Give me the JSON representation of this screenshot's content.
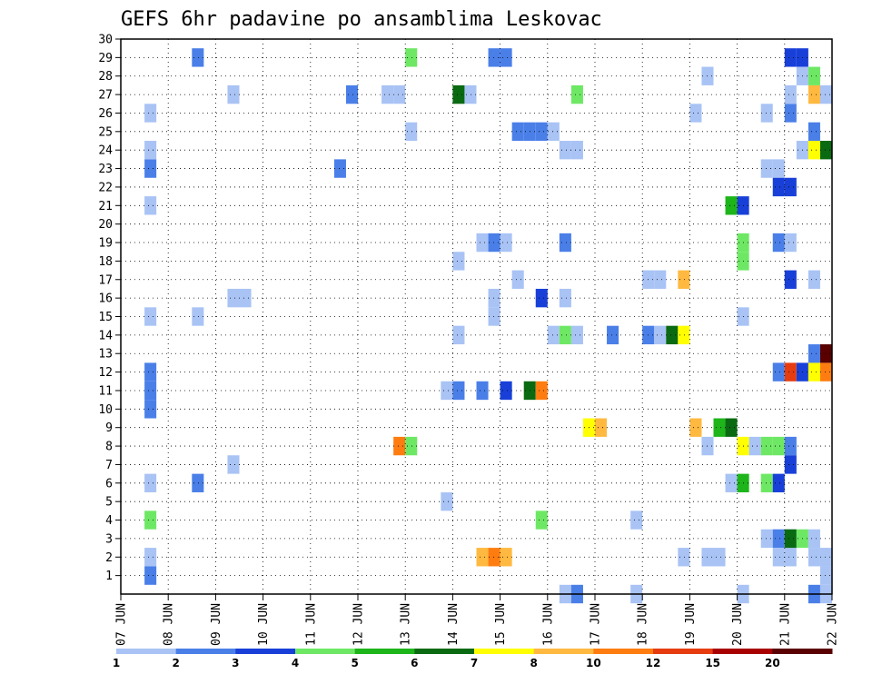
{
  "chart_data": {
    "type": "heatmap",
    "title": "GEFS 6hr padavine po ansamblima Leskovac",
    "xlabel": "",
    "ylabel": "",
    "x_ticks": [
      "07 JUN",
      "08 JUN",
      "09 JUN",
      "10 JUN",
      "11 JUN",
      "12 JUN",
      "13 JUN",
      "14 JUN",
      "15 JUN",
      "16 JUN",
      "17 JUN",
      "18 JUN",
      "19 JUN",
      "20 JUN",
      "21 JUN",
      "22 JUN"
    ],
    "y_ticks": [
      "1",
      "2",
      "3",
      "4",
      "5",
      "6",
      "7",
      "8",
      "9",
      "10",
      "11",
      "12",
      "13",
      "14",
      "15",
      "16",
      "17",
      "18",
      "19",
      "20",
      "21",
      "22",
      "23",
      "24",
      "25",
      "26",
      "27",
      "28",
      "29",
      "30"
    ],
    "x_range_days": [
      0,
      15
    ],
    "y_range": [
      0,
      30
    ],
    "grid": true,
    "legend": "bottom colorbar",
    "colorbar": {
      "labels": [
        "1",
        "2",
        "3",
        "4",
        "5",
        "6",
        "7",
        "8",
        "10",
        "12",
        "15",
        "20"
      ],
      "colors": [
        "#a9c3f5",
        "#4a7fe8",
        "#1840d8",
        "#6ee864",
        "#1db51a",
        "#0a6a12",
        "#ffff00",
        "#ffb940",
        "#ff7d10",
        "#e63c10",
        "#a80000",
        "#5a0000"
      ]
    },
    "cells": [
      {
        "day": 0.5,
        "member": 1,
        "cat": 2
      },
      {
        "day": 0.5,
        "member": 2,
        "cat": 1
      },
      {
        "day": 0.5,
        "member": 4,
        "cat": 4
      },
      {
        "day": 0.5,
        "member": 6,
        "cat": 1
      },
      {
        "day": 0.5,
        "member": 10,
        "cat": 2
      },
      {
        "day": 0.5,
        "member": 11,
        "cat": 2
      },
      {
        "day": 0.5,
        "member": 12,
        "cat": 2
      },
      {
        "day": 0.5,
        "member": 15,
        "cat": 1
      },
      {
        "day": 0.5,
        "member": 21,
        "cat": 1
      },
      {
        "day": 0.5,
        "member": 23,
        "cat": 2
      },
      {
        "day": 0.5,
        "member": 24,
        "cat": 1
      },
      {
        "day": 0.5,
        "member": 26,
        "cat": 1
      },
      {
        "day": 1.5,
        "member": 6,
        "cat": 2
      },
      {
        "day": 1.5,
        "member": 15,
        "cat": 1
      },
      {
        "day": 1.5,
        "member": 29,
        "cat": 2
      },
      {
        "day": 2.25,
        "member": 7,
        "cat": 1
      },
      {
        "day": 2.25,
        "member": 16,
        "cat": 1
      },
      {
        "day": 2.5,
        "member": 16,
        "cat": 1
      },
      {
        "day": 2.25,
        "member": 27,
        "cat": 1
      },
      {
        "day": 4.5,
        "member": 23,
        "cat": 2
      },
      {
        "day": 4.75,
        "member": 27,
        "cat": 2
      },
      {
        "day": 5.5,
        "member": 27,
        "cat": 1
      },
      {
        "day": 5.75,
        "member": 27,
        "cat": 1
      },
      {
        "day": 5.75,
        "member": 8,
        "cat": 9
      },
      {
        "day": 6.0,
        "member": 8,
        "cat": 4
      },
      {
        "day": 6.0,
        "member": 25,
        "cat": 1
      },
      {
        "day": 6.0,
        "member": 29,
        "cat": 4
      },
      {
        "day": 6.75,
        "member": 5,
        "cat": 1
      },
      {
        "day": 6.75,
        "member": 11,
        "cat": 1
      },
      {
        "day": 7.0,
        "member": 11,
        "cat": 2
      },
      {
        "day": 7.0,
        "member": 14,
        "cat": 1
      },
      {
        "day": 7.0,
        "member": 18,
        "cat": 1
      },
      {
        "day": 7.0,
        "member": 27,
        "cat": 6
      },
      {
        "day": 7.25,
        "member": 27,
        "cat": 1
      },
      {
        "day": 7.5,
        "member": 2,
        "cat": 8
      },
      {
        "day": 7.75,
        "member": 2,
        "cat": 9
      },
      {
        "day": 8.0,
        "member": 2,
        "cat": 8
      },
      {
        "day": 7.5,
        "member": 11,
        "cat": 2
      },
      {
        "day": 7.5,
        "member": 19,
        "cat": 1
      },
      {
        "day": 7.75,
        "member": 19,
        "cat": 2
      },
      {
        "day": 8.0,
        "member": 19,
        "cat": 1
      },
      {
        "day": 7.75,
        "member": 15,
        "cat": 1
      },
      {
        "day": 7.75,
        "member": 16,
        "cat": 1
      },
      {
        "day": 7.75,
        "member": 29,
        "cat": 2
      },
      {
        "day": 8.0,
        "member": 29,
        "cat": 2
      },
      {
        "day": 8.0,
        "member": 11,
        "cat": 3
      },
      {
        "day": 8.25,
        "member": 17,
        "cat": 1
      },
      {
        "day": 8.25,
        "member": 25,
        "cat": 2
      },
      {
        "day": 8.5,
        "member": 25,
        "cat": 2
      },
      {
        "day": 8.75,
        "member": 25,
        "cat": 2
      },
      {
        "day": 9.0,
        "member": 25,
        "cat": 1
      },
      {
        "day": 8.5,
        "member": 11,
        "cat": 6
      },
      {
        "day": 8.75,
        "member": 11,
        "cat": 9
      },
      {
        "day": 8.75,
        "member": 4,
        "cat": 4
      },
      {
        "day": 8.75,
        "member": 16,
        "cat": 3
      },
      {
        "day": 9.0,
        "member": 14,
        "cat": 1
      },
      {
        "day": 9.25,
        "member": 0,
        "cat": 1
      },
      {
        "day": 9.25,
        "member": 14,
        "cat": 4
      },
      {
        "day": 9.25,
        "member": 16,
        "cat": 1
      },
      {
        "day": 9.25,
        "member": 19,
        "cat": 2
      },
      {
        "day": 9.25,
        "member": 24,
        "cat": 1
      },
      {
        "day": 9.5,
        "member": 24,
        "cat": 1
      },
      {
        "day": 9.5,
        "member": 0,
        "cat": 2
      },
      {
        "day": 9.5,
        "member": 14,
        "cat": 1
      },
      {
        "day": 9.5,
        "member": 27,
        "cat": 4
      },
      {
        "day": 9.75,
        "member": 9,
        "cat": 7
      },
      {
        "day": 10.0,
        "member": 9,
        "cat": 8
      },
      {
        "day": 10.25,
        "member": 14,
        "cat": 2
      },
      {
        "day": 10.75,
        "member": 4,
        "cat": 1
      },
      {
        "day": 10.75,
        "member": 0,
        "cat": 1
      },
      {
        "day": 11.0,
        "member": 14,
        "cat": 2
      },
      {
        "day": 11.0,
        "member": 17,
        "cat": 1
      },
      {
        "day": 11.25,
        "member": 17,
        "cat": 1
      },
      {
        "day": 11.25,
        "member": 14,
        "cat": 1
      },
      {
        "day": 11.5,
        "member": 14,
        "cat": 6
      },
      {
        "day": 11.75,
        "member": 14,
        "cat": 7
      },
      {
        "day": 11.75,
        "member": 17,
        "cat": 8
      },
      {
        "day": 11.75,
        "member": 2,
        "cat": 1
      },
      {
        "day": 12.0,
        "member": 9,
        "cat": 8
      },
      {
        "day": 12.25,
        "member": 8,
        "cat": 1
      },
      {
        "day": 12.25,
        "member": 28,
        "cat": 1
      },
      {
        "day": 12.0,
        "member": 26,
        "cat": 1
      },
      {
        "day": 12.25,
        "member": 2,
        "cat": 1
      },
      {
        "day": 12.5,
        "member": 2,
        "cat": 1
      },
      {
        "day": 12.5,
        "member": 9,
        "cat": 5
      },
      {
        "day": 12.75,
        "member": 9,
        "cat": 6
      },
      {
        "day": 12.75,
        "member": 6,
        "cat": 1
      },
      {
        "day": 12.75,
        "member": 21,
        "cat": 5
      },
      {
        "day": 13.0,
        "member": 6,
        "cat": 5
      },
      {
        "day": 13.0,
        "member": 8,
        "cat": 7
      },
      {
        "day": 13.0,
        "member": 15,
        "cat": 1
      },
      {
        "day": 13.0,
        "member": 18,
        "cat": 4
      },
      {
        "day": 13.0,
        "member": 19,
        "cat": 4
      },
      {
        "day": 13.0,
        "member": 21,
        "cat": 3
      },
      {
        "day": 13.25,
        "member": 8,
        "cat": 1
      },
      {
        "day": 13.0,
        "member": 0,
        "cat": 1
      },
      {
        "day": 13.5,
        "member": 8,
        "cat": 4
      },
      {
        "day": 13.5,
        "member": 6,
        "cat": 4
      },
      {
        "day": 13.5,
        "member": 3,
        "cat": 1
      },
      {
        "day": 13.5,
        "member": 23,
        "cat": 1
      },
      {
        "day": 13.5,
        "member": 26,
        "cat": 1
      },
      {
        "day": 13.75,
        "member": 23,
        "cat": 1
      },
      {
        "day": 13.75,
        "member": 8,
        "cat": 4
      },
      {
        "day": 13.75,
        "member": 6,
        "cat": 3
      },
      {
        "day": 13.75,
        "member": 3,
        "cat": 2
      },
      {
        "day": 13.75,
        "member": 2,
        "cat": 1
      },
      {
        "day": 13.75,
        "member": 12,
        "cat": 2
      },
      {
        "day": 13.75,
        "member": 19,
        "cat": 2
      },
      {
        "day": 13.75,
        "member": 22,
        "cat": 3
      },
      {
        "day": 14.0,
        "member": 22,
        "cat": 3
      },
      {
        "day": 14.0,
        "member": 12,
        "cat": 10
      },
      {
        "day": 14.0,
        "member": 8,
        "cat": 2
      },
      {
        "day": 14.0,
        "member": 7,
        "cat": 3
      },
      {
        "day": 14.0,
        "member": 3,
        "cat": 1
      },
      {
        "day": 14.0,
        "member": 2,
        "cat": 1
      },
      {
        "day": 14.0,
        "member": 19,
        "cat": 1
      },
      {
        "day": 14.0,
        "member": 29,
        "cat": 3
      },
      {
        "day": 14.25,
        "member": 29,
        "cat": 3
      },
      {
        "day": 14.0,
        "member": 26,
        "cat": 2
      },
      {
        "day": 14.0,
        "member": 27,
        "cat": 1
      },
      {
        "day": 14.0,
        "member": 17,
        "cat": 3
      },
      {
        "day": 14.0,
        "member": 3,
        "cat": 6
      },
      {
        "day": 14.25,
        "member": 12,
        "cat": 3
      },
      {
        "day": 14.25,
        "member": 3,
        "cat": 4
      },
      {
        "day": 14.25,
        "member": 24,
        "cat": 1
      },
      {
        "day": 14.25,
        "member": 28,
        "cat": 1
      },
      {
        "day": 14.5,
        "member": 12,
        "cat": 7
      },
      {
        "day": 14.5,
        "member": 13,
        "cat": 2
      },
      {
        "day": 14.5,
        "member": 24,
        "cat": 7
      },
      {
        "day": 14.5,
        "member": 25,
        "cat": 2
      },
      {
        "day": 14.5,
        "member": 27,
        "cat": 8
      },
      {
        "day": 14.5,
        "member": 28,
        "cat": 4
      },
      {
        "day": 14.5,
        "member": 3,
        "cat": 1
      },
      {
        "day": 14.5,
        "member": 2,
        "cat": 1
      },
      {
        "day": 14.5,
        "member": 17,
        "cat": 1
      },
      {
        "day": 14.75,
        "member": 12,
        "cat": 9
      },
      {
        "day": 14.75,
        "member": 13,
        "cat": 12
      },
      {
        "day": 14.75,
        "member": 24,
        "cat": 6
      },
      {
        "day": 14.75,
        "member": 27,
        "cat": 1
      },
      {
        "day": 14.75,
        "member": 2,
        "cat": 1
      },
      {
        "day": 14.75,
        "member": 1,
        "cat": 1
      },
      {
        "day": 14.5,
        "member": 0,
        "cat": 2
      },
      {
        "day": 14.75,
        "member": 0,
        "cat": 1
      }
    ]
  }
}
